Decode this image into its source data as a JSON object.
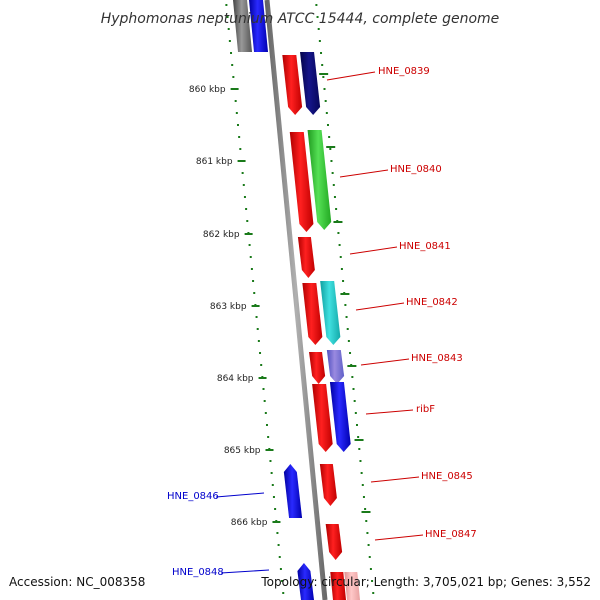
{
  "title": "Hyphomonas neptunium ATCC 15444, complete genome",
  "footer": {
    "accession": "Accession: NC_008358",
    "info": "Topology: circular; Length: 3,705,021 bp; Genes: 3,552"
  },
  "colors": {
    "backbone": "#888888",
    "tick": "#1a7a1a",
    "forward_label": "#cc0000",
    "reverse_label": "#0000cc",
    "gene_red": "#ff0000",
    "gene_blue": "#0000ff",
    "gene_navy": "#0a0a7a",
    "gene_green": "#33cc33",
    "gene_cyan": "#22cccc",
    "gene_grey": "#555555"
  },
  "ruler": [
    {
      "label": "860 kbp"
    },
    {
      "label": "861 kbp"
    },
    {
      "label": "862 kbp"
    },
    {
      "label": "863 kbp"
    },
    {
      "label": "864 kbp"
    },
    {
      "label": "865 kbp"
    },
    {
      "label": "866 kbp"
    }
  ],
  "gene_labels": [
    {
      "name": "HNE_0839",
      "strand": "forward"
    },
    {
      "name": "HNE_0840",
      "strand": "forward"
    },
    {
      "name": "HNE_0841",
      "strand": "forward"
    },
    {
      "name": "HNE_0842",
      "strand": "forward"
    },
    {
      "name": "HNE_0843",
      "strand": "forward"
    },
    {
      "name": "ribF",
      "strand": "forward"
    },
    {
      "name": "HNE_0845",
      "strand": "forward"
    },
    {
      "name": "HNE_0846",
      "strand": "reverse"
    },
    {
      "name": "HNE_0847",
      "strand": "forward"
    },
    {
      "name": "HNE_0848",
      "strand": "reverse"
    }
  ]
}
